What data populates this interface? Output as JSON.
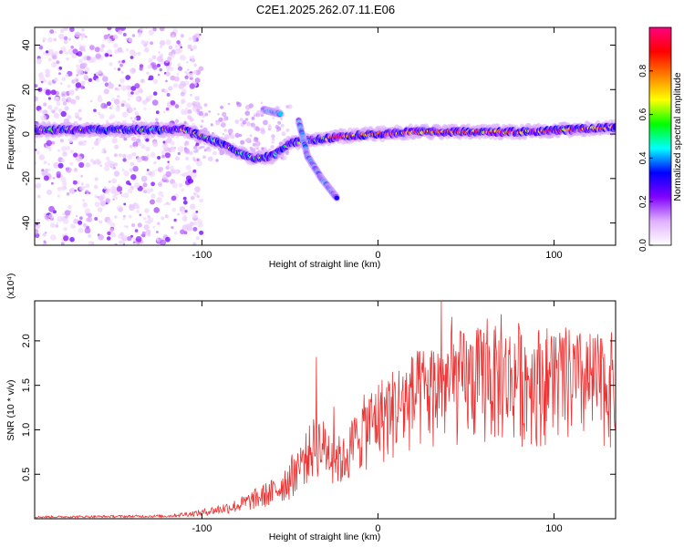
{
  "title": "C2E1.2025.262.07.11.E06",
  "chart_data": [
    {
      "type": "heatmap",
      "name": "spectrogram",
      "xlabel": "Height of straight line (km)",
      "ylabel": "Frequency (Hz)",
      "xlim": [
        -195,
        135
      ],
      "ylim": [
        -50,
        48
      ],
      "x_ticks": [
        -100,
        0,
        100
      ],
      "y_ticks": [
        -40,
        -20,
        0,
        20,
        40
      ],
      "x_tick_labels": [
        "-100",
        "0",
        "100"
      ],
      "y_tick_labels": [
        "-40",
        "-20",
        "0",
        "20",
        "40"
      ],
      "colorbar": {
        "label": "Normalized spectral amplitude",
        "range": [
          0,
          1
        ],
        "ticks": [
          0.0,
          0.2,
          0.4,
          0.6,
          0.8
        ],
        "tick_labels": [
          "0.0",
          "0.2",
          "0.4",
          "0.6",
          "0.8"
        ],
        "colors": [
          "#ffffff",
          "#e0b0ff",
          "#8000ff",
          "#0000ff",
          "#00ffff",
          "#00ff00",
          "#ffff00",
          "#ff8000",
          "#ff0000",
          "#ff0080"
        ]
      },
      "ridge": [
        {
          "x": -195,
          "f": 2
        },
        {
          "x": -150,
          "f": 2
        },
        {
          "x": -110,
          "f": 2
        },
        {
          "x": -100,
          "f": -1
        },
        {
          "x": -90,
          "f": -4
        },
        {
          "x": -80,
          "f": -8
        },
        {
          "x": -70,
          "f": -11
        },
        {
          "x": -60,
          "f": -10
        },
        {
          "x": -50,
          "f": -4
        },
        {
          "x": -40,
          "f": -3
        },
        {
          "x": -30,
          "f": -2
        },
        {
          "x": -20,
          "f": -1
        },
        {
          "x": 0,
          "f": 0
        },
        {
          "x": 20,
          "f": 1
        },
        {
          "x": 50,
          "f": 1
        },
        {
          "x": 80,
          "f": 1
        },
        {
          "x": 110,
          "f": 2
        },
        {
          "x": 135,
          "f": 3
        }
      ],
      "branches": [
        {
          "points": [
            {
              "x": -65,
              "f": 11
            },
            {
              "x": -55,
              "f": 9
            }
          ]
        },
        {
          "points": [
            {
              "x": -45,
              "f": 6
            },
            {
              "x": -40,
              "f": -10
            },
            {
              "x": -32,
              "f": -20
            },
            {
              "x": -23,
              "f": -29
            }
          ]
        }
      ]
    },
    {
      "type": "line",
      "name": "snr",
      "xlabel": "Height of straight line (km)",
      "ylabel": "SNR (10 * v/v)",
      "y_multiplier": "(x10⁴)",
      "xlim": [
        -195,
        135
      ],
      "ylim": [
        0,
        2.45
      ],
      "x_ticks": [
        -100,
        0,
        100
      ],
      "y_ticks": [
        0.5,
        1.0,
        1.5,
        2.0
      ],
      "x_tick_labels": [
        "-100",
        "0",
        "100"
      ],
      "y_tick_labels": [
        "0.5",
        "1.0",
        "1.5",
        "2.0"
      ],
      "color": "#ee3333",
      "envelope": [
        {
          "x": -195,
          "y": 0.02
        },
        {
          "x": -120,
          "y": 0.03
        },
        {
          "x": -100,
          "y": 0.07
        },
        {
          "x": -80,
          "y": 0.15
        },
        {
          "x": -60,
          "y": 0.3
        },
        {
          "x": -45,
          "y": 0.55
        },
        {
          "x": -35,
          "y": 0.8
        },
        {
          "x": -20,
          "y": 0.6
        },
        {
          "x": -10,
          "y": 0.9
        },
        {
          "x": 0,
          "y": 1.05
        },
        {
          "x": 20,
          "y": 1.25
        },
        {
          "x": 40,
          "y": 1.4
        },
        {
          "x": 60,
          "y": 1.45
        },
        {
          "x": 80,
          "y": 1.45
        },
        {
          "x": 100,
          "y": 1.45
        },
        {
          "x": 120,
          "y": 1.4
        },
        {
          "x": 135,
          "y": 1.4
        }
      ],
      "peaks": [
        {
          "x": -35,
          "y": 1.82
        },
        {
          "x": -25,
          "y": 1.26
        },
        {
          "x": 36,
          "y": 2.45
        },
        {
          "x": 42,
          "y": 2.27
        },
        {
          "x": 62,
          "y": 2.25
        },
        {
          "x": 70,
          "y": 2.3
        },
        {
          "x": 80,
          "y": 2.2
        },
        {
          "x": 100,
          "y": 2.05
        },
        {
          "x": 125,
          "y": 1.93
        }
      ]
    }
  ]
}
